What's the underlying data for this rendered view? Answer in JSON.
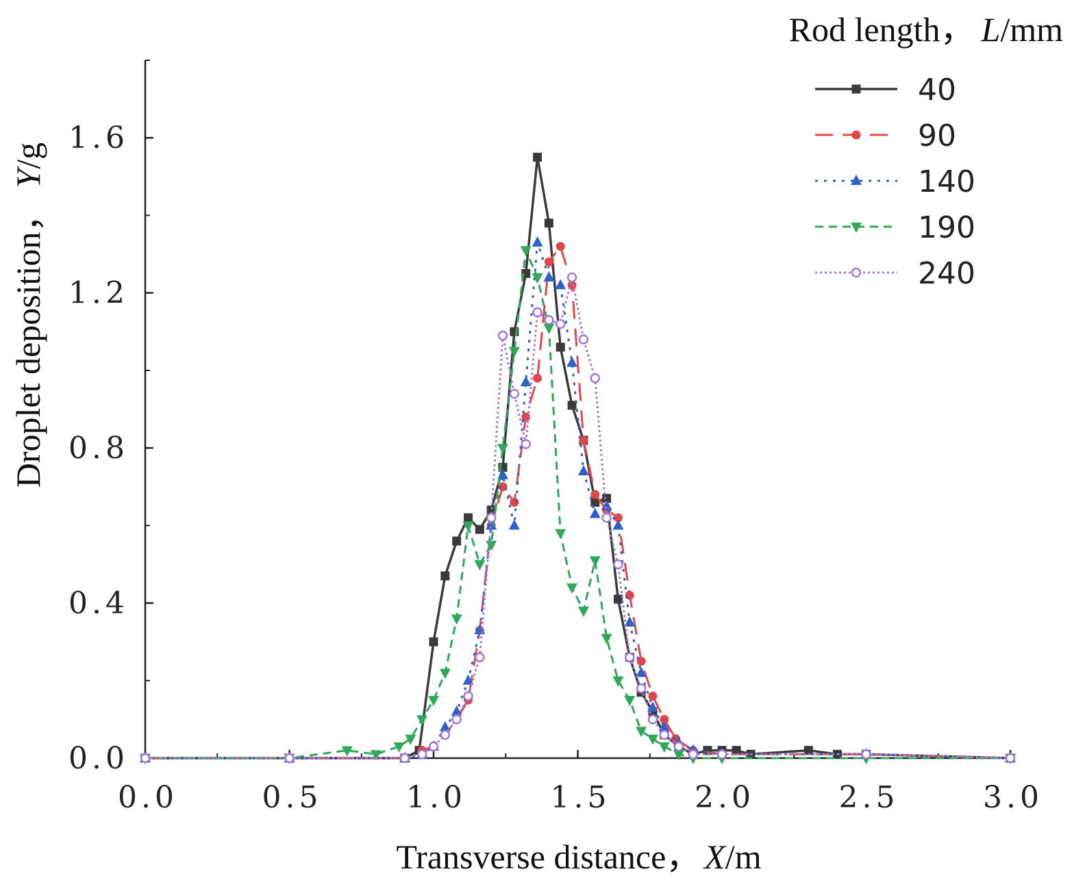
{
  "chart_data": {
    "type": "line",
    "title": "",
    "xlabel": {
      "prefix": "Transverse distance，",
      "var": "X",
      "unit": "/m"
    },
    "ylabel": {
      "prefix": "Droplet deposition，",
      "var": "Y",
      "unit": "/g"
    },
    "xlim": [
      0.0,
      3.0
    ],
    "ylim": [
      0.0,
      1.8
    ],
    "xticks": [
      0.0,
      0.5,
      1.0,
      1.5,
      2.0,
      2.5,
      3.0
    ],
    "xtick_labels": [
      "0.0",
      "0.5",
      "1.0",
      "1.5",
      "2.0",
      "2.5",
      "3.0"
    ],
    "yticks": [
      0.0,
      0.4,
      0.8,
      1.2,
      1.6
    ],
    "ytick_labels": [
      "0.0",
      "0.4",
      "0.8",
      "1.2",
      "1.6"
    ],
    "grid": false,
    "legend": {
      "title_prefix": "Rod length，",
      "title_var": "L",
      "title_unit": "/mm",
      "position": "top-right"
    },
    "series": [
      {
        "name": "40",
        "color": "#3a3a3a",
        "dash": "solid",
        "marker": "square",
        "x": [
          0.0,
          0.5,
          0.9,
          0.95,
          1.0,
          1.04,
          1.08,
          1.12,
          1.16,
          1.2,
          1.24,
          1.28,
          1.32,
          1.36,
          1.4,
          1.44,
          1.48,
          1.52,
          1.56,
          1.6,
          1.64,
          1.68,
          1.72,
          1.76,
          1.8,
          1.85,
          1.9,
          1.95,
          2.0,
          2.05,
          2.1,
          2.3,
          2.4,
          2.5,
          3.0
        ],
        "y": [
          0.0,
          0.0,
          0.0,
          0.02,
          0.3,
          0.47,
          0.56,
          0.62,
          0.59,
          0.64,
          0.75,
          1.1,
          1.25,
          1.55,
          1.38,
          1.06,
          0.91,
          0.82,
          0.66,
          0.67,
          0.41,
          0.26,
          0.17,
          0.12,
          0.06,
          0.03,
          0.01,
          0.02,
          0.02,
          0.02,
          0.01,
          0.02,
          0.01,
          0.01,
          0.0
        ]
      },
      {
        "name": "90",
        "color": "#e04848",
        "dash": "long-dash",
        "marker": "circle",
        "x": [
          0.0,
          0.5,
          0.9,
          0.96,
          1.0,
          1.04,
          1.08,
          1.12,
          1.16,
          1.2,
          1.24,
          1.28,
          1.32,
          1.36,
          1.4,
          1.44,
          1.48,
          1.52,
          1.56,
          1.6,
          1.64,
          1.68,
          1.72,
          1.76,
          1.8,
          1.84,
          1.9,
          2.0,
          2.5,
          3.0
        ],
        "y": [
          0.0,
          0.0,
          0.0,
          0.02,
          0.03,
          0.06,
          0.1,
          0.15,
          0.33,
          0.6,
          0.7,
          0.66,
          0.88,
          0.98,
          1.28,
          1.32,
          1.22,
          0.82,
          0.68,
          0.64,
          0.62,
          0.42,
          0.25,
          0.16,
          0.1,
          0.05,
          0.02,
          0.01,
          0.01,
          0.0
        ]
      },
      {
        "name": "140",
        "color": "#2f62c8",
        "dash": "dot",
        "marker": "triangle-up",
        "x": [
          0.0,
          0.5,
          0.9,
          0.96,
          1.0,
          1.04,
          1.08,
          1.12,
          1.16,
          1.2,
          1.24,
          1.28,
          1.32,
          1.36,
          1.4,
          1.44,
          1.48,
          1.52,
          1.56,
          1.6,
          1.64,
          1.68,
          1.72,
          1.76,
          1.8,
          1.85,
          1.9,
          2.0,
          2.5,
          3.0
        ],
        "y": [
          0.0,
          0.0,
          0.0,
          0.01,
          0.03,
          0.08,
          0.12,
          0.2,
          0.33,
          0.6,
          0.73,
          0.6,
          0.97,
          1.33,
          1.24,
          1.22,
          1.02,
          0.74,
          0.63,
          0.65,
          0.6,
          0.35,
          0.22,
          0.13,
          0.08,
          0.04,
          0.02,
          0.01,
          0.01,
          0.0
        ]
      },
      {
        "name": "190",
        "color": "#2fa85a",
        "dash": "short-dash",
        "marker": "triangle-down",
        "x": [
          0.0,
          0.5,
          0.7,
          0.8,
          0.88,
          0.92,
          0.96,
          1.0,
          1.04,
          1.08,
          1.12,
          1.16,
          1.2,
          1.24,
          1.28,
          1.32,
          1.36,
          1.4,
          1.44,
          1.48,
          1.52,
          1.56,
          1.6,
          1.64,
          1.68,
          1.72,
          1.76,
          1.8,
          1.85,
          1.9,
          2.0,
          2.5,
          3.0
        ],
        "y": [
          0.0,
          0.0,
          0.02,
          0.01,
          0.03,
          0.05,
          0.1,
          0.15,
          0.22,
          0.36,
          0.6,
          0.5,
          0.55,
          0.8,
          1.05,
          1.31,
          1.24,
          1.11,
          0.58,
          0.44,
          0.38,
          0.51,
          0.31,
          0.2,
          0.15,
          0.07,
          0.05,
          0.03,
          0.01,
          0.0,
          0.0,
          0.0,
          0.0
        ]
      },
      {
        "name": "240",
        "color": "#a479d6",
        "dash": "fine-dot",
        "marker": "circle-open",
        "x": [
          0.0,
          0.5,
          0.9,
          0.96,
          1.0,
          1.04,
          1.08,
          1.12,
          1.16,
          1.2,
          1.24,
          1.28,
          1.32,
          1.36,
          1.4,
          1.44,
          1.48,
          1.52,
          1.56,
          1.6,
          1.64,
          1.68,
          1.72,
          1.76,
          1.8,
          1.85,
          1.9,
          2.0,
          2.5,
          3.0
        ],
        "y": [
          0.0,
          0.0,
          0.0,
          0.01,
          0.03,
          0.06,
          0.1,
          0.16,
          0.26,
          0.62,
          1.09,
          0.94,
          0.81,
          1.15,
          1.13,
          1.12,
          1.24,
          1.08,
          0.98,
          0.62,
          0.5,
          0.26,
          0.18,
          0.1,
          0.06,
          0.03,
          0.01,
          0.01,
          0.01,
          0.0
        ]
      }
    ]
  }
}
